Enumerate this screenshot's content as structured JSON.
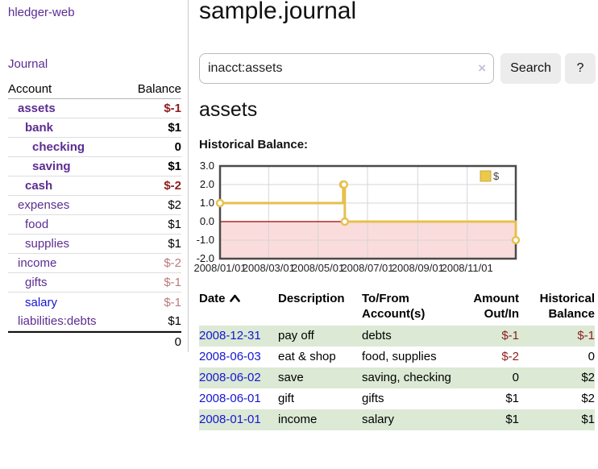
{
  "app": {
    "brand": "hledger-web",
    "nav_journal": "Journal"
  },
  "sidebar": {
    "header": {
      "account": "Account",
      "balance": "Balance"
    },
    "accounts": [
      {
        "name": "assets",
        "depth": 1,
        "bold": true,
        "balance": "$-1",
        "negative": "strong",
        "link_blue": false
      },
      {
        "name": "bank",
        "depth": 2,
        "bold": true,
        "balance": "$1",
        "negative": null,
        "link_blue": false
      },
      {
        "name": "checking",
        "depth": 3,
        "bold": true,
        "balance": "0",
        "negative": null,
        "link_blue": false
      },
      {
        "name": "saving",
        "depth": 3,
        "bold": true,
        "balance": "$1",
        "negative": null,
        "link_blue": false
      },
      {
        "name": "cash",
        "depth": 2,
        "bold": true,
        "balance": "$-2",
        "negative": "strong",
        "link_blue": false
      },
      {
        "name": "expenses",
        "depth": 1,
        "bold": false,
        "balance": "$2",
        "negative": null,
        "link_blue": false
      },
      {
        "name": "food",
        "depth": 2,
        "bold": false,
        "balance": "$1",
        "negative": null,
        "link_blue": false
      },
      {
        "name": "supplies",
        "depth": 2,
        "bold": false,
        "balance": "$1",
        "negative": null,
        "link_blue": false
      },
      {
        "name": "income",
        "depth": 1,
        "bold": false,
        "balance": "$-2",
        "negative": "muted",
        "link_blue": false
      },
      {
        "name": "gifts",
        "depth": 2,
        "bold": false,
        "balance": "$-1",
        "negative": "muted",
        "link_blue": false
      },
      {
        "name": "salary",
        "depth": 2,
        "bold": false,
        "balance": "$-1",
        "negative": "muted",
        "link_blue": true
      },
      {
        "name": "liabilities:debts",
        "depth": 1,
        "bold": false,
        "balance": "$1",
        "negative": null,
        "link_blue": false
      }
    ],
    "total": "0"
  },
  "main": {
    "title": "sample.journal",
    "search": {
      "value": "inacct:assets",
      "clear_icon": "×",
      "search_button": "Search",
      "help_button": "?"
    },
    "account_heading": "assets",
    "chart_label": "Historical Balance:"
  },
  "chart_data": {
    "type": "line",
    "title": "Historical Balance:",
    "step": true,
    "series": [
      {
        "name": "$",
        "points": [
          [
            "2008-01-01",
            1
          ],
          [
            "2008-06-01",
            2
          ],
          [
            "2008-06-02",
            2
          ],
          [
            "2008-06-03",
            0
          ],
          [
            "2008-12-31",
            -1
          ]
        ]
      }
    ],
    "x_range": [
      "2008-01-01",
      "2008-12-31"
    ],
    "ylim": [
      -2,
      3
    ],
    "y_ticks": [
      3.0,
      2.0,
      1.0,
      0.0,
      -1.0,
      -2.0
    ],
    "x_ticks": [
      {
        "date": "2008-01-01",
        "label": "2008/01/01"
      },
      {
        "date": "2008-03-01",
        "label": "2008/03/01"
      },
      {
        "date": "2008-05-01",
        "label": "2008/05/01"
      },
      {
        "date": "2008-07-01",
        "label": "2008/07/01"
      },
      {
        "date": "2008-09-01",
        "label": "2008/09/01"
      },
      {
        "date": "2008-11-01",
        "label": "2008/11/01"
      }
    ],
    "grid": true,
    "legend_position": "top-right",
    "line_color": "#e6c04d",
    "negative_region_color": "#fbdcdc",
    "zero_line_color": "#a00000"
  },
  "register_table": {
    "headers": {
      "date": "Date",
      "description": "Description",
      "tofrom": "To/From Account(s)",
      "amount": "Amount Out/In",
      "balance": "Historical Balance"
    },
    "rows": [
      {
        "date": "2008-12-31",
        "description": "pay off",
        "tofrom": "debts",
        "amount": "$-1",
        "balance": "$-1"
      },
      {
        "date": "2008-06-03",
        "description": "eat & shop",
        "tofrom": "food, supplies",
        "amount": "$-2",
        "balance": "0"
      },
      {
        "date": "2008-06-02",
        "description": "save",
        "tofrom": "saving, checking",
        "amount": "0",
        "balance": "$2"
      },
      {
        "date": "2008-06-01",
        "description": "gift",
        "tofrom": "gifts",
        "amount": "$1",
        "balance": "$2"
      },
      {
        "date": "2008-01-01",
        "description": "income",
        "tofrom": "salary",
        "amount": "$1",
        "balance": "$1"
      }
    ]
  },
  "colors": {
    "link_purple": "#5b2d90",
    "link_blue": "#1616d1",
    "negative_strong": "#8f1d1d",
    "negative_muted": "#b87a7a",
    "row_green": "#dbe9d5",
    "chart_gold": "#e6c04d",
    "chart_negative_fill": "#fbdcdc"
  }
}
